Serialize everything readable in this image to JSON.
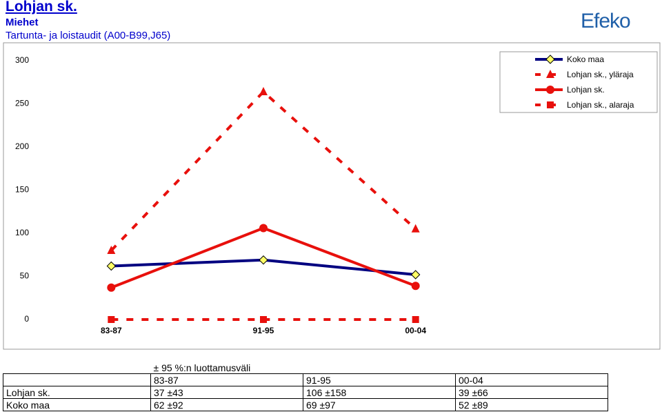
{
  "logo": "Efeko",
  "chart_data": {
    "type": "line",
    "title": "Lohjan sk.",
    "subtitle": "Miehet",
    "subtitle2": "Tartunta- ja loistaudit (A00-B99,J65)",
    "categories": [
      "83-87",
      "91-95",
      "00-04"
    ],
    "series": [
      {
        "name": "Koko maa",
        "color": "#000080",
        "marker": "diamond",
        "marker_color": "#ffff66",
        "dashed": false,
        "values": [
          62,
          69,
          52
        ]
      },
      {
        "name": "Lohjan sk., yläraja",
        "color": "#e8100c",
        "marker": "triangle",
        "dashed": true,
        "values": [
          80,
          264,
          105
        ]
      },
      {
        "name": "Lohjan sk.",
        "color": "#e8100c",
        "marker": "circle",
        "dashed": false,
        "values": [
          37,
          106,
          39
        ]
      },
      {
        "name": "Lohjan sk., alaraja",
        "color": "#e8100c",
        "marker": "square",
        "dashed": true,
        "values": [
          0,
          0,
          0
        ]
      }
    ],
    "ylim": [
      0,
      300
    ],
    "yticks": [
      0,
      50,
      100,
      150,
      200,
      250,
      300
    ],
    "grid": false,
    "legend": "top-right"
  },
  "table": {
    "header": "± 95 %:n luottamusväli",
    "columns": [
      "83-87",
      "91-95",
      "00-04"
    ],
    "rows": [
      [
        "Lohjan sk.",
        "37 ±43",
        "106 ±158",
        "39 ±66"
      ],
      [
        "Koko maa",
        "62 ±92",
        "69 ±97",
        "52 ±89"
      ]
    ]
  }
}
